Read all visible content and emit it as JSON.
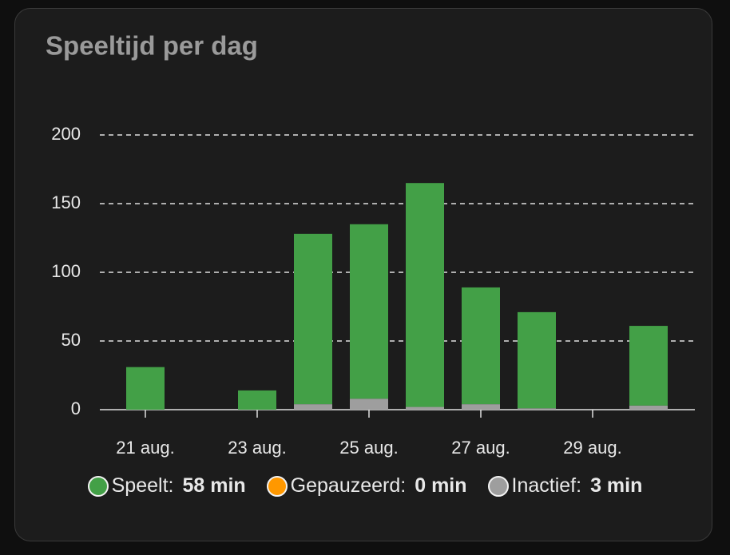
{
  "chart_data": {
    "type": "bar",
    "stacked": true,
    "title": "Speeltijd per dag",
    "categories": [
      "21 aug.",
      null,
      "23 aug.",
      null,
      "25 aug.",
      null,
      "27 aug.",
      null,
      "29 aug.",
      null
    ],
    "series": [
      {
        "name": "Speelt:",
        "color": "#43a047",
        "summary": "58 min",
        "values": [
          31,
          0,
          14,
          124,
          127,
          163,
          85,
          70,
          0,
          58
        ]
      },
      {
        "name": "Gepauzeerd:",
        "color": "#ff9800",
        "summary": "0 min",
        "values": [
          0,
          0,
          0,
          0,
          0,
          0,
          0,
          0,
          0,
          0
        ]
      },
      {
        "name": "Inactief:",
        "color": "#9e9e9e",
        "summary": "3 min",
        "values": [
          0,
          0,
          0,
          4,
          8,
          2,
          4,
          1,
          0,
          3
        ]
      }
    ],
    "ylim": [
      0,
      200
    ],
    "yticks": [
      0,
      50,
      100,
      150,
      200
    ],
    "grid": true
  }
}
